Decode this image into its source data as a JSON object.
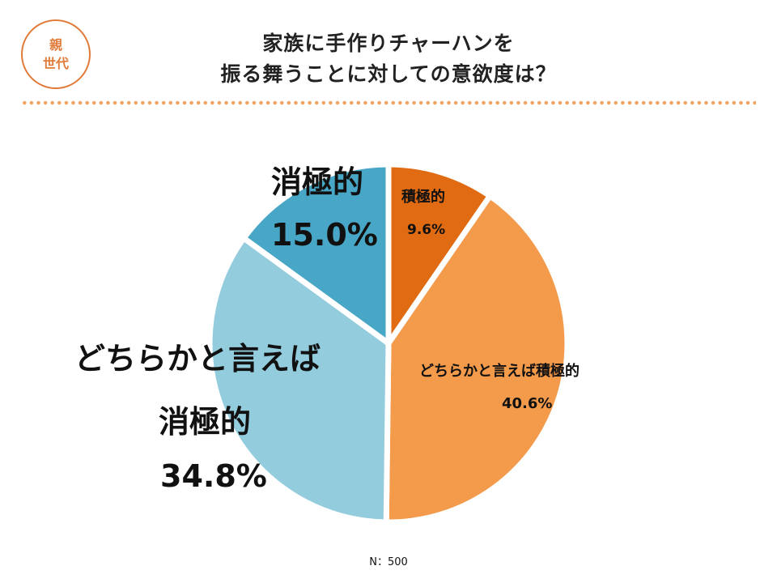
{
  "badge": {
    "line1": "親",
    "line2": "世代"
  },
  "title": {
    "line1": "家族に手作りチャーハンを",
    "line2": "振る舞うことに対しての意欲度は？"
  },
  "chart_data": {
    "type": "pie",
    "start_angle_deg": 0,
    "direction": "clockwise",
    "slices": [
      {
        "label": "積極的",
        "value": 9.6,
        "value_text": "9.6%",
        "color": "#e06b12"
      },
      {
        "label": "どちらかと言えば積極的",
        "value": 40.6,
        "value_text": "40.6%",
        "color": "#f39a4b"
      },
      {
        "label_line1": "どちらかと言えば",
        "label_line2": "消極的",
        "value": 34.8,
        "value_text": "34.8%",
        "color": "#93ccdd"
      },
      {
        "label": "消極的",
        "value": 15.0,
        "value_text": "15.0%",
        "color": "#48a7c6"
      }
    ]
  },
  "footer": {
    "n": "N：500"
  }
}
